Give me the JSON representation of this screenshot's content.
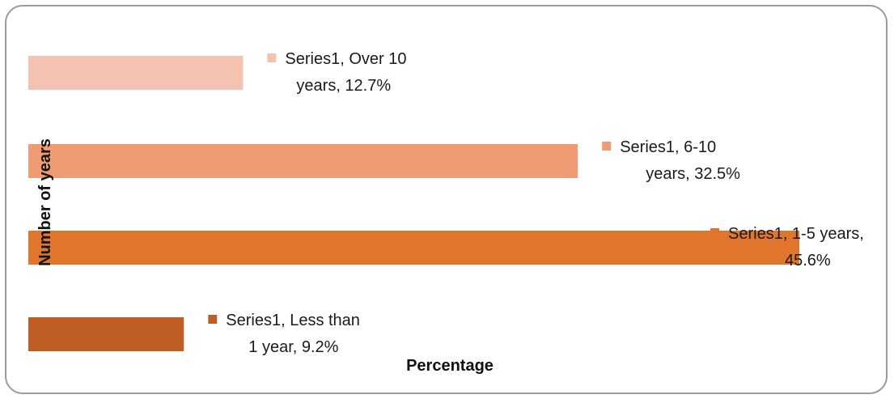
{
  "chart_data": {
    "type": "bar",
    "orientation": "horizontal",
    "categories": [
      "Over 10 years",
      "6-10 years",
      "1-5 years",
      "Less than 1 year"
    ],
    "series": [
      {
        "name": "Series1",
        "values": [
          12.7,
          32.5,
          45.6,
          9.2
        ],
        "colors": [
          "#F4C2B1",
          "#EF9B73",
          "#E0752C",
          "#BF5E25"
        ]
      }
    ],
    "value_format": "percent",
    "data_labels": [
      [
        "Series1, Over 10",
        "years, 12.7%"
      ],
      [
        "Series1, 6-10",
        "years, 32.5%"
      ],
      [
        "Series1, 1-5 years,",
        "45.6%"
      ],
      [
        "Series1, Less than",
        "1 year, 9.2%"
      ]
    ],
    "xlabel": "Percentage",
    "ylabel": "Number of years",
    "xlim": [
      0,
      45.6
    ],
    "grid": false,
    "legend": "none"
  }
}
